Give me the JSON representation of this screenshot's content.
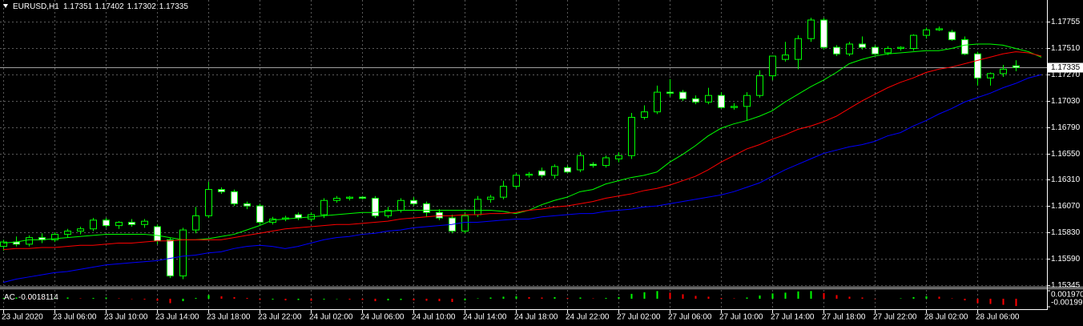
{
  "chart_data": [
    {
      "type": "candlestick",
      "title": "EURUSD,H1",
      "categories": [
        "23 Jul 2020",
        null,
        null,
        null,
        "23 Jul 06:00",
        null,
        null,
        null,
        "23 Jul 10:00",
        null,
        null,
        null,
        "23 Jul 14:00",
        null,
        null,
        null,
        "23 Jul 18:00",
        null,
        null,
        null,
        "23 Jul 22:00",
        null,
        null,
        null,
        "24 Jul 02:00",
        null,
        null,
        null,
        "24 Jul 06:00",
        null,
        null,
        null,
        "24 Jul 10:00",
        null,
        null,
        null,
        "24 Jul 14:00",
        null,
        null,
        null,
        "24 Jul 18:00",
        null,
        null,
        null,
        "24 Jul 22:00",
        null,
        null,
        null,
        "27 Jul 02:00",
        null,
        null,
        null,
        "27 Jul 06:00",
        null,
        null,
        null,
        "27 Jul 10:00",
        null,
        null,
        null,
        "27 Jul 14:00",
        null,
        null,
        null,
        "27 Jul 18:00",
        null,
        null,
        null,
        "27 Jul 22:00",
        null,
        null,
        null,
        "28 Jul 02:00",
        null,
        null,
        null,
        "28 Jul 06:00",
        null,
        null,
        null,
        null,
        null
      ],
      "open": [
        1.157,
        1.1574,
        1.1572,
        1.1578,
        1.1576,
        1.1581,
        1.1584,
        1.1586,
        1.1594,
        1.1589,
        1.1592,
        1.159,
        1.1588,
        1.1576,
        1.1543,
        1.1585,
        1.1598,
        1.1622,
        1.162,
        1.1609,
        1.1607,
        1.1592,
        1.1595,
        1.1599,
        1.1595,
        1.1599,
        1.1612,
        1.1614,
        1.1615,
        1.1614,
        1.1598,
        1.1603,
        1.1612,
        1.1609,
        1.1601,
        1.1596,
        1.1584,
        1.1599,
        1.1613,
        1.1615,
        1.1625,
        1.1635,
        1.1639,
        1.1635,
        1.1642,
        1.164,
        1.1645,
        1.1644,
        1.165,
        1.1653,
        1.1688,
        1.1693,
        1.1711,
        1.1711,
        1.1705,
        1.1702,
        1.1708,
        1.1697,
        1.1698,
        1.1708,
        1.1726,
        1.1741,
        1.1741,
        1.176,
        1.1777,
        1.1752,
        1.1746,
        1.1755,
        1.1752,
        1.1747,
        1.1751,
        1.1751,
        1.1763,
        1.1768,
        1.1766,
        1.1759,
        1.1746,
        1.1724,
        1.1728,
        1.17351,
        null,
        null
      ],
      "high": [
        1.1576,
        1.1579,
        1.158,
        1.1582,
        1.1583,
        1.1586,
        1.1588,
        1.1596,
        1.1596,
        1.1593,
        1.1595,
        1.1595,
        1.159,
        1.1578,
        1.1587,
        1.1606,
        1.1629,
        1.1624,
        1.1622,
        1.1611,
        1.1609,
        1.1597,
        1.1598,
        1.1601,
        1.1601,
        1.1614,
        1.1616,
        1.1616,
        1.1616,
        1.1616,
        1.1606,
        1.1614,
        1.1615,
        1.1611,
        1.1604,
        1.1599,
        1.1601,
        1.1616,
        1.1617,
        1.163,
        1.1637,
        1.1638,
        1.1642,
        1.1645,
        1.1644,
        1.1656,
        1.1647,
        1.1653,
        1.1656,
        1.1692,
        1.1699,
        1.1717,
        1.1723,
        1.1713,
        1.1708,
        1.1715,
        1.1711,
        1.1701,
        1.1711,
        1.1731,
        1.1744,
        1.1757,
        1.1763,
        1.1779,
        1.1779,
        1.1754,
        1.1757,
        1.1762,
        1.1754,
        1.1753,
        1.1753,
        1.1764,
        1.177,
        1.1771,
        1.1768,
        1.1762,
        1.1748,
        1.1729,
        1.1736,
        1.17402,
        null,
        null
      ],
      "low": [
        1.1566,
        1.157,
        1.157,
        1.1573,
        1.1574,
        1.1578,
        1.1581,
        1.1584,
        1.1587,
        1.1586,
        1.1588,
        1.1587,
        1.1572,
        1.1541,
        1.154,
        1.1582,
        1.1596,
        1.1618,
        1.1607,
        1.1604,
        1.159,
        1.159,
        1.1593,
        1.1594,
        1.1593,
        1.1596,
        1.161,
        1.1612,
        1.1613,
        1.1596,
        1.1596,
        1.1601,
        1.1607,
        1.1597,
        1.1594,
        1.1582,
        1.1582,
        1.1597,
        1.161,
        1.1613,
        1.1623,
        1.1633,
        1.1633,
        1.1632,
        1.1637,
        1.1638,
        1.1642,
        1.1642,
        1.1647,
        1.165,
        1.1686,
        1.1691,
        1.1707,
        1.1703,
        1.17,
        1.17,
        1.1696,
        1.1695,
        1.1685,
        1.1706,
        1.1722,
        1.1739,
        1.1732,
        1.1757,
        1.175,
        1.1744,
        1.1744,
        1.175,
        1.1745,
        1.1745,
        1.1749,
        1.1749,
        1.176,
        1.1767,
        1.1758,
        1.1745,
        1.1717,
        1.1717,
        1.1725,
        1.17302,
        null,
        null
      ],
      "close": [
        1.1574,
        1.1572,
        1.1578,
        1.1576,
        1.1581,
        1.1584,
        1.1586,
        1.1594,
        1.1589,
        1.1592,
        1.159,
        1.1593,
        1.1575,
        1.1543,
        1.1585,
        1.1598,
        1.1622,
        1.162,
        1.1609,
        1.1607,
        1.1592,
        1.1595,
        1.1596,
        1.1596,
        1.1599,
        1.1612,
        1.1614,
        1.1615,
        1.1614,
        1.1598,
        1.1603,
        1.1612,
        1.1609,
        1.1601,
        1.1596,
        1.1584,
        1.1598,
        1.1613,
        1.1615,
        1.1625,
        1.1635,
        1.1636,
        1.1635,
        1.1643,
        1.1638,
        1.1653,
        1.1644,
        1.1651,
        1.1653,
        1.1688,
        1.1693,
        1.1711,
        1.171,
        1.1705,
        1.1702,
        1.1708,
        1.1697,
        1.1698,
        1.1708,
        1.1726,
        1.1744,
        1.1745,
        1.176,
        1.1777,
        1.1752,
        1.1746,
        1.1755,
        1.1752,
        1.1746,
        1.1751,
        1.1752,
        1.1763,
        1.1768,
        1.1769,
        1.1759,
        1.1746,
        1.1724,
        1.1728,
        1.1732,
        1.17335,
        null,
        null
      ],
      "up_color": "#000000",
      "down_color": "#ffffff",
      "wick_color": "#00ff00",
      "series": [
        {
          "color": "#00ff00",
          "values": [
            1.1573,
            1.1574,
            1.1576,
            1.1576,
            1.1577,
            1.1578,
            1.1579,
            1.158,
            1.1581,
            1.1581,
            1.1581,
            1.1581,
            1.158,
            1.1578,
            1.1576,
            1.1576,
            1.1577,
            1.1579,
            1.1581,
            1.1585,
            1.1589,
            1.1594,
            1.1595,
            1.1596,
            1.1597,
            1.1598,
            1.1599,
            1.16,
            1.1601,
            1.1601,
            1.1602,
            1.1603,
            1.1603,
            1.1603,
            1.1603,
            1.1603,
            1.1603,
            1.1603,
            1.1603,
            1.1602,
            1.16,
            1.1603,
            1.1608,
            1.1612,
            1.1615,
            1.162,
            1.1622,
            1.1627,
            1.163,
            1.1633,
            1.1635,
            1.1638,
            1.1647,
            1.1654,
            1.1662,
            1.1671,
            1.1678,
            1.1682,
            1.1685,
            1.1689,
            1.1694,
            1.1702,
            1.1709,
            1.1716,
            1.1722,
            1.1729,
            1.1737,
            1.1741,
            1.1744,
            1.1746,
            1.1747,
            1.1748,
            1.1749,
            1.1749,
            1.1751,
            1.1754,
            1.1755,
            1.1755,
            1.1754,
            1.1751,
            1.1748,
            1.1743
          ]
        },
        {
          "color": "#ff0000",
          "values": [
            1.1567,
            1.1568,
            1.1568,
            1.1569,
            1.1569,
            1.157,
            1.1571,
            1.1571,
            1.1572,
            1.1573,
            1.1573,
            1.1574,
            1.1575,
            1.1575,
            1.1576,
            1.1576,
            1.1576,
            1.1576,
            1.1578,
            1.158,
            1.1582,
            1.1584,
            1.1586,
            1.1587,
            1.1588,
            1.1589,
            1.159,
            1.159,
            1.1591,
            1.1592,
            1.1593,
            1.1595,
            1.1596,
            1.1597,
            1.1598,
            1.1598,
            1.1599,
            1.1599,
            1.16,
            1.16,
            1.1601,
            1.1603,
            1.1604,
            1.1606,
            1.1607,
            1.1609,
            1.1611,
            1.1614,
            1.1616,
            1.1618,
            1.1621,
            1.1623,
            1.1626,
            1.163,
            1.1634,
            1.164,
            1.1647,
            1.1653,
            1.1659,
            1.1663,
            1.1668,
            1.1672,
            1.1677,
            1.168,
            1.1684,
            1.1689,
            1.1696,
            1.1703,
            1.1709,
            1.1715,
            1.172,
            1.1724,
            1.1729,
            1.1732,
            1.1734,
            1.1737,
            1.174,
            1.1743,
            1.1746,
            1.1748,
            1.1747,
            1.1744
          ]
        },
        {
          "color": "#0000ff",
          "values": [
            1.1537,
            1.154,
            1.1542,
            1.1544,
            1.1546,
            1.1547,
            1.1549,
            1.1551,
            1.1553,
            1.1554,
            1.1555,
            1.1556,
            1.1557,
            1.1559,
            1.1561,
            1.1562,
            1.1564,
            1.1565,
            1.1568,
            1.157,
            1.1571,
            1.157,
            1.1568,
            1.157,
            1.1573,
            1.1576,
            1.1578,
            1.1579,
            1.1581,
            1.1582,
            1.1584,
            1.1585,
            1.1587,
            1.1588,
            1.1589,
            1.159,
            1.1592,
            1.1592,
            1.1593,
            1.1594,
            1.1595,
            1.1595,
            1.1597,
            1.1598,
            1.1599,
            1.16,
            1.16,
            1.1602,
            1.1603,
            1.1604,
            1.1606,
            1.1607,
            1.1609,
            1.1611,
            1.1613,
            1.1615,
            1.1617,
            1.162,
            1.1624,
            1.1628,
            1.1634,
            1.164,
            1.1645,
            1.165,
            1.1655,
            1.1658,
            1.1661,
            1.1663,
            1.1666,
            1.1671,
            1.1674,
            1.168,
            1.1685,
            1.1691,
            1.1696,
            1.1702,
            1.1706,
            1.171,
            1.1715,
            1.1719,
            1.1724,
            1.1727
          ]
        }
      ],
      "ylim": [
        1.15338,
        1.17953
      ],
      "yticks": [
        1.15345,
        {
          "value": 1.1559,
          "label": "1.15590"
        },
        {
          "value": 1.1583,
          "label": "1.15830"
        },
        {
          "value": 1.1607,
          "label": "1.16070"
        },
        {
          "value": 1.1631,
          "label": "1.16310"
        },
        {
          "value": 1.1655,
          "label": "1.16550"
        },
        {
          "value": 1.1679,
          "label": "1.16790"
        },
        {
          "value": 1.1703,
          "label": "1.17030"
        },
        {
          "value": 1.1727,
          "label": "1.17270"
        },
        {
          "value": 1.1751,
          "label": "1.17510"
        },
        1.17755
      ],
      "grid": true
    },
    {
      "type": "histogram",
      "name": "AC",
      "values": [
        0.0002,
        0.0003,
        0.0002,
        0.0001,
        0.0002,
        0.0003,
        0.0001,
        0.0002,
        0.0003,
        0.0001,
        -0.0001,
        -0.0002,
        -0.0005,
        -0.0011,
        -0.0006,
        0.0002,
        0.0009,
        0.0006,
        0.0004,
        0.0002,
        -0.0003,
        -0.0002,
        -0.0004,
        -0.0003,
        -0.0005,
        -0.0002,
        -0.0001,
        -0.0002,
        -0.0003,
        -0.0006,
        -0.0004,
        -0.0003,
        -0.0004,
        -0.0005,
        -0.0006,
        -0.0008,
        -0.0004,
        0.0001,
        0.0003,
        0.0005,
        0.0006,
        0.0004,
        0.0003,
        0.0004,
        0.0002,
        0.0003,
        0.0001,
        0.0002,
        0.0004,
        0.0012,
        0.0016,
        0.0019,
        0.0015,
        0.0011,
        0.0007,
        0.0005,
        0.0002,
        0.0001,
        0.0003,
        0.0008,
        0.0013,
        0.0015,
        0.0018,
        0.0019,
        0.0014,
        0.0009,
        0.0005,
        0.0003,
        -0.0001,
        0,
        0.0001,
        0.0004,
        0.0006,
        0.0005,
        0.0001,
        -0.0004,
        -0.0011,
        -0.0013,
        -0.0015,
        -0.0018114,
        null,
        null
      ],
      "up_color": "#00ff00",
      "down_color": "#ff0000",
      "ylim": [
        -0.00199,
        0.00197
      ],
      "yticks": [
        {
          "value": 0.00197,
          "label": "0.001970"
        },
        {
          "value": -0.00199,
          "label": "-0.00199"
        }
      ]
    }
  ]
}
